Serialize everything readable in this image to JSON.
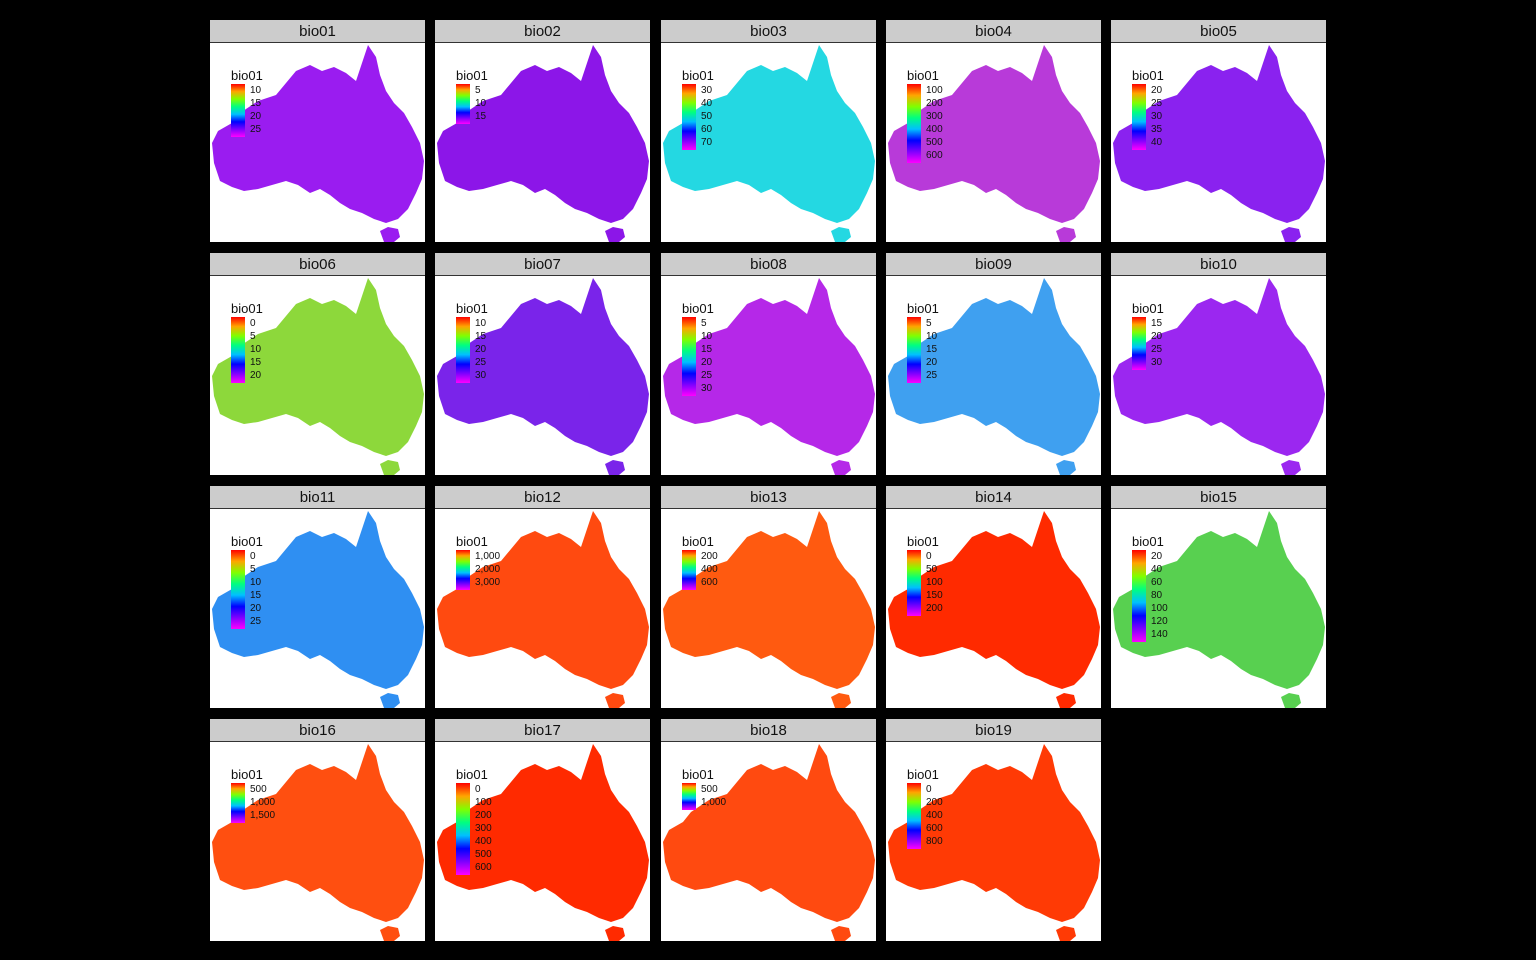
{
  "legend_title": "bio01",
  "background_color": "#000000",
  "strip_color": "#cccccc",
  "palette": [
    "#ff0000",
    "#ffa500",
    "#80ff00",
    "#00ff80",
    "#00c0ff",
    "#0000ff",
    "#8000ff",
    "#ff00ff"
  ],
  "panels": [
    {
      "title": "bio01",
      "fill": "#9a1cf0",
      "ticks": [
        "10",
        "15",
        "20",
        "25"
      ]
    },
    {
      "title": "bio02",
      "fill": "#8c16e8",
      "ticks": [
        "5",
        "10",
        "15"
      ]
    },
    {
      "title": "bio03",
      "fill": "#24d8e2",
      "ticks": [
        "30",
        "40",
        "50",
        "60",
        "70"
      ]
    },
    {
      "title": "bio04",
      "fill": "#b83ad9",
      "ticks": [
        "100",
        "200",
        "300",
        "400",
        "500",
        "600"
      ]
    },
    {
      "title": "bio05",
      "fill": "#8a22ef",
      "ticks": [
        "20",
        "25",
        "30",
        "35",
        "40"
      ]
    },
    {
      "title": "bio06",
      "fill": "#8dd83b",
      "ticks": [
        "0",
        "5",
        "10",
        "15",
        "20"
      ]
    },
    {
      "title": "bio07",
      "fill": "#7a24ea",
      "ticks": [
        "10",
        "15",
        "20",
        "25",
        "30"
      ]
    },
    {
      "title": "bio08",
      "fill": "#b528e8",
      "ticks": [
        "5",
        "10",
        "15",
        "20",
        "25",
        "30"
      ]
    },
    {
      "title": "bio09",
      "fill": "#3fa0f0",
      "ticks": [
        "5",
        "10",
        "15",
        "20",
        "25"
      ]
    },
    {
      "title": "bio10",
      "fill": "#9b27f0",
      "ticks": [
        "15",
        "20",
        "25",
        "30"
      ]
    },
    {
      "title": "bio11",
      "fill": "#2f8ff2",
      "ticks": [
        "0",
        "5",
        "10",
        "15",
        "20",
        "25"
      ]
    },
    {
      "title": "bio12",
      "fill": "#ff4a10",
      "ticks": [
        "1,000",
        "2,000",
        "3,000"
      ]
    },
    {
      "title": "bio13",
      "fill": "#ff5a10",
      "ticks": [
        "200",
        "400",
        "600"
      ]
    },
    {
      "title": "bio14",
      "fill": "#ff2a00",
      "ticks": [
        "0",
        "50",
        "100",
        "150",
        "200"
      ]
    },
    {
      "title": "bio15",
      "fill": "#58d050",
      "ticks": [
        "20",
        "40",
        "60",
        "80",
        "100",
        "120",
        "140"
      ]
    },
    {
      "title": "bio16",
      "fill": "#ff4f10",
      "ticks": [
        "500",
        "1,000",
        "1,500"
      ]
    },
    {
      "title": "bio17",
      "fill": "#ff2a00",
      "ticks": [
        "0",
        "100",
        "200",
        "300",
        "400",
        "500",
        "600"
      ]
    },
    {
      "title": "bio18",
      "fill": "#ff4a10",
      "ticks": [
        "500",
        "1,000"
      ]
    },
    {
      "title": "bio19",
      "fill": "#ff3a05",
      "ticks": [
        "0",
        "200",
        "400",
        "600",
        "800"
      ]
    }
  ]
}
